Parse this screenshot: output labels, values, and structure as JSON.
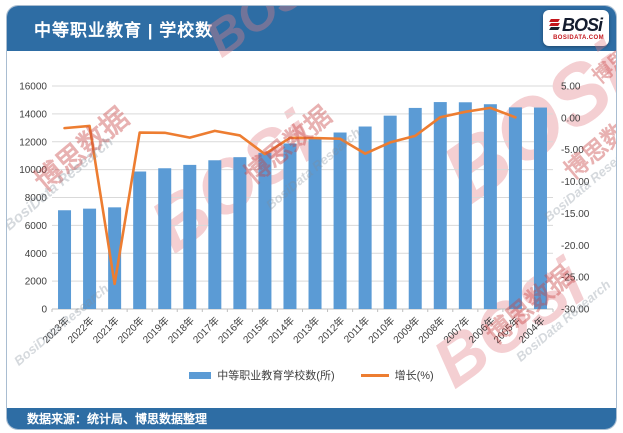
{
  "header": {
    "title": "中等职业教育 | 学校数",
    "logo": {
      "name": "BOSi",
      "domain": "BOSIDATA.COM"
    }
  },
  "footer": {
    "source": "数据来源：统计局、博思数据整理"
  },
  "watermarks": {
    "cn": "博思数据",
    "en": "BosiData Research",
    "logo": "BOSi"
  },
  "colors": {
    "header_bar": "#2E6DA4",
    "bar_series": "#5B9BD5",
    "line_series": "#ED7D31",
    "gridline": "#d9d9d9",
    "axis_line": "#bfbfbf",
    "axis_text": "#404040"
  },
  "chart_data": {
    "type": "bar",
    "subtype": "bar+line combo, dual axis",
    "title": "中等职业教育 | 学校数",
    "xlabel": "",
    "ylabel_left": "学校数(所)",
    "ylabel_right": "增长(%)",
    "grid": true,
    "legend_position": "bottom",
    "categories": [
      "2023年",
      "2022年",
      "2021年",
      "2020年",
      "2019年",
      "2018年",
      "2017年",
      "2016年",
      "2015年",
      "2014年",
      "2013年",
      "2012年",
      "2011年",
      "2010年",
      "2009年",
      "2008年",
      "2007年",
      "2006年",
      "2005年",
      "2004年"
    ],
    "series": [
      {
        "name": "中等职业教育学校数(所)",
        "type": "bar",
        "axis": "left",
        "color": "#5B9BD5",
        "values": [
          7085,
          7201,
          7294,
          9865,
          10098,
          10340,
          10671,
          10893,
          11202,
          11878,
          12262,
          12663,
          13093,
          13872,
          14427,
          14847,
          14832,
          14693,
          14466,
          14454
        ]
      },
      {
        "name": "增长(%)",
        "type": "line",
        "axis": "right",
        "color": "#ED7D31",
        "values": [
          -1.61,
          -1.27,
          -26.06,
          -2.31,
          -2.34,
          -3.1,
          -2.04,
          -2.76,
          -5.69,
          -3.13,
          -3.17,
          -3.28,
          -5.62,
          -3.85,
          -2.83,
          0.1,
          0.95,
          1.57,
          0.08,
          null
        ]
      }
    ],
    "left_axis": {
      "min": 0,
      "max": 16000,
      "step": 2000
    },
    "right_axis": {
      "min": -30,
      "max": 5,
      "step": 5,
      "decimals": 2,
      "tick_labels": [
        "5.00",
        "0.00",
        "-5.00",
        "-10.00",
        "-15.00",
        "-20.00",
        "-25.00",
        "-30.00"
      ]
    }
  }
}
